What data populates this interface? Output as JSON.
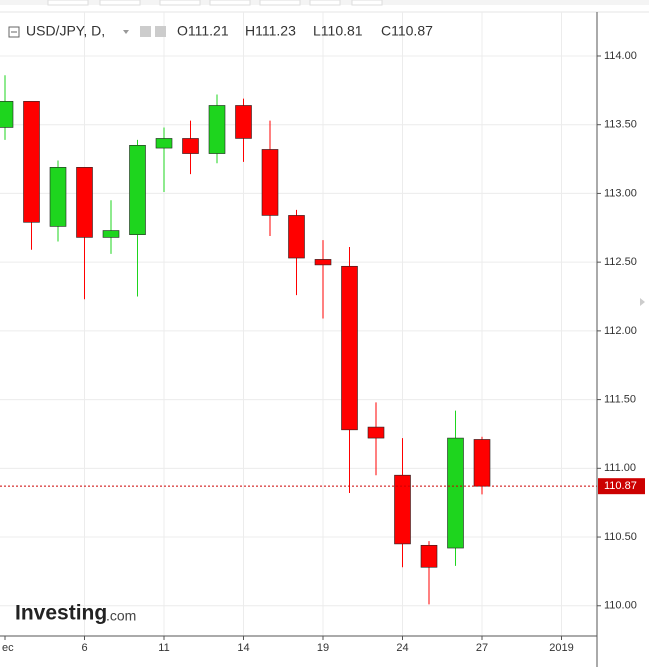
{
  "chart_data": {
    "type": "candlestick",
    "title": "USD/JPY, D,",
    "ohlc_labels": [
      "O111.21",
      "H111.23",
      "L110.81",
      "C110.87"
    ],
    "watermark": [
      "Investing",
      ".com"
    ],
    "categories": [
      "ec",
      null,
      null,
      "6",
      null,
      null,
      "11",
      null,
      null,
      "14",
      null,
      null,
      "19",
      null,
      null,
      "24",
      null,
      null,
      "27",
      null,
      null,
      "2019"
    ],
    "open": [
      113.48,
      113.67,
      112.76,
      113.19,
      112.68,
      112.7,
      113.33,
      113.4,
      113.29,
      113.64,
      113.32,
      112.84,
      112.52,
      112.47,
      111.3,
      110.95,
      110.44,
      110.42,
      111.21,
      null,
      null,
      null
    ],
    "high": [
      113.86,
      113.67,
      113.24,
      113.19,
      112.95,
      113.39,
      113.48,
      113.53,
      113.72,
      113.69,
      113.53,
      112.88,
      112.66,
      112.61,
      111.48,
      111.22,
      110.47,
      111.42,
      111.23,
      null,
      null,
      null
    ],
    "low": [
      113.39,
      112.59,
      112.65,
      112.23,
      112.56,
      112.25,
      113.01,
      113.14,
      113.22,
      113.23,
      112.69,
      112.26,
      112.09,
      110.82,
      110.95,
      110.28,
      110.01,
      110.29,
      110.81,
      null,
      null,
      null
    ],
    "close": [
      113.67,
      112.79,
      113.19,
      112.68,
      112.73,
      113.35,
      113.4,
      113.29,
      113.64,
      113.4,
      112.84,
      112.53,
      112.48,
      111.28,
      111.22,
      110.45,
      110.28,
      111.22,
      110.87,
      null,
      null,
      null
    ],
    "up_color": "#1ed51e",
    "down_color": "#ff0000",
    "ylim": [
      109.78,
      114.32
    ],
    "yticks": [
      {
        "value": 110,
        "label": "110.00"
      },
      {
        "value": 110.5,
        "label": "110.50"
      },
      {
        "value": 111,
        "label": "111.00"
      },
      {
        "value": 111.5,
        "label": "111.50"
      },
      {
        "value": 112,
        "label": "112.00"
      },
      {
        "value": 112.5,
        "label": "112.50"
      },
      {
        "value": 113,
        "label": "113.00"
      },
      {
        "value": 113.5,
        "label": "113.50"
      },
      {
        "value": 114,
        "label": "114.00"
      }
    ],
    "grid": true,
    "last_price": 110.87,
    "last_price_color": "#cc0000"
  }
}
